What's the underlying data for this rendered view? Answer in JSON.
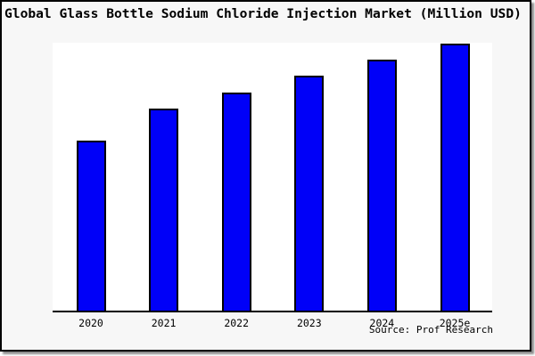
{
  "title": "Global Glass Bottle Sodium Chloride Injection Market (Million USD)",
  "source_credit": "Source: Prof Research",
  "colors": {
    "bar_fill": "#0000f8",
    "bar_border": "#000000",
    "frame_background": "#f7f7f7",
    "plot_background": "#ffffff",
    "axis": "#000000",
    "frame_border": "#000000"
  },
  "chart_data": {
    "type": "bar",
    "title": "Global Glass Bottle Sodium Chloride Injection Market (Million USD)",
    "categories": [
      "2020",
      "2021",
      "2022",
      "2023",
      "2024",
      "2025e"
    ],
    "values": [
      0.63,
      0.75,
      0.81,
      0.87,
      0.93,
      0.99
    ],
    "values_note": "No y-axis ticks or data labels are shown in the chart; values are bar heights as a fraction of the plot height",
    "xlabel": "",
    "ylabel": "",
    "ylim": [
      0,
      1
    ],
    "grid": false,
    "legend": false,
    "source": "Source: Prof Research"
  }
}
